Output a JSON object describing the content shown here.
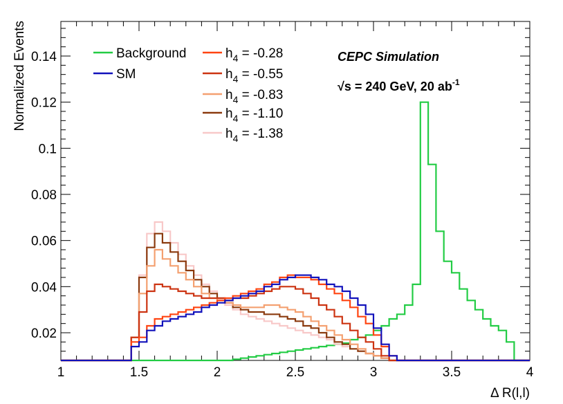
{
  "chart_data": {
    "type": "histogram",
    "title": "",
    "xlabel": "Δ R(l,l)",
    "ylabel": "Normalized Events",
    "xlim": [
      1.0,
      4.0
    ],
    "ylim": [
      0.008,
      0.155
    ],
    "bin_width": 0.05,
    "x_start": 1.0,
    "x_ticks": [
      "1",
      "1.5",
      "2",
      "2.5",
      "3",
      "3.5",
      "4"
    ],
    "y_ticks": [
      "0.02",
      "0.04",
      "0.06",
      "0.08",
      "0.1",
      "0.12",
      "0.14"
    ],
    "annotations": {
      "line1": "CEPC Simulation",
      "line2": "√s = 240 GeV, 20 ab",
      "line2_sup": "-1"
    },
    "series": [
      {
        "name": "Background",
        "legend_label": "Background",
        "color": "#22cc44",
        "values": [
          0.008,
          0.008,
          0.008,
          0.008,
          0.008,
          0.008,
          0.008,
          0.008,
          0.008,
          0.008,
          0.008,
          0.008,
          0.008,
          0.008,
          0.008,
          0.008,
          0.008,
          0.008,
          0.008,
          0.008,
          0.008,
          0.008,
          0.0085,
          0.009,
          0.0095,
          0.01,
          0.0105,
          0.011,
          0.0115,
          0.012,
          0.0125,
          0.013,
          0.0135,
          0.014,
          0.0145,
          0.015,
          0.0155,
          0.017,
          0.018,
          0.019,
          0.021,
          0.023,
          0.026,
          0.028,
          0.032,
          0.041,
          0.12,
          0.093,
          0.064,
          0.051,
          0.046,
          0.039,
          0.034,
          0.03,
          0.026,
          0.023,
          0.021,
          0.016,
          0.008,
          0.008
        ]
      },
      {
        "name": "SM",
        "legend_label": "SM",
        "color": "#1111bb",
        "values": [
          0.008,
          0.008,
          0.008,
          0.008,
          0.008,
          0.008,
          0.008,
          0.008,
          0.008,
          0.014,
          0.016,
          0.021,
          0.023,
          0.025,
          0.026,
          0.027,
          0.028,
          0.029,
          0.031,
          0.032,
          0.033,
          0.034,
          0.035,
          0.036,
          0.037,
          0.038,
          0.04,
          0.041,
          0.043,
          0.044,
          0.045,
          0.045,
          0.044,
          0.043,
          0.041,
          0.04,
          0.038,
          0.035,
          0.032,
          0.028,
          0.022,
          0.015,
          0.01,
          0.008,
          0.008,
          0.008,
          0.008,
          0.008,
          0.008,
          0.008,
          0.008,
          0.008,
          0.008,
          0.008,
          0.008,
          0.008,
          0.008,
          0.008,
          0.008,
          0.008
        ]
      },
      {
        "name": "h4 = -0.28",
        "legend_base": "h",
        "legend_sub": "4",
        "legend_value": " = -0.28",
        "color": "#ff4411",
        "values": [
          0.008,
          0.008,
          0.008,
          0.008,
          0.008,
          0.008,
          0.008,
          0.008,
          0.008,
          0.016,
          0.018,
          0.023,
          0.026,
          0.027,
          0.028,
          0.029,
          0.03,
          0.031,
          0.032,
          0.033,
          0.034,
          0.035,
          0.036,
          0.037,
          0.038,
          0.039,
          0.041,
          0.042,
          0.044,
          0.045,
          0.044,
          0.044,
          0.043,
          0.041,
          0.039,
          0.037,
          0.034,
          0.031,
          0.027,
          0.024,
          0.019,
          0.014,
          0.01,
          0.008,
          0.008,
          0.008,
          0.008,
          0.008,
          0.008,
          0.008,
          0.008,
          0.008,
          0.008,
          0.008,
          0.008,
          0.008,
          0.008,
          0.008,
          0.008,
          0.008
        ]
      },
      {
        "name": "h4 = -0.55",
        "legend_base": "h",
        "legend_sub": "4",
        "legend_value": " = -0.55",
        "color": "#cc3311",
        "values": [
          0.008,
          0.008,
          0.008,
          0.008,
          0.008,
          0.008,
          0.008,
          0.008,
          0.008,
          0.018,
          0.029,
          0.038,
          0.041,
          0.04,
          0.039,
          0.038,
          0.037,
          0.036,
          0.035,
          0.035,
          0.035,
          0.034,
          0.035,
          0.035,
          0.036,
          0.037,
          0.038,
          0.039,
          0.04,
          0.04,
          0.039,
          0.037,
          0.035,
          0.032,
          0.03,
          0.027,
          0.024,
          0.021,
          0.018,
          0.016,
          0.013,
          0.01,
          0.008,
          0.008,
          0.008,
          0.008,
          0.008,
          0.008,
          0.008,
          0.008,
          0.008,
          0.008,
          0.008,
          0.008,
          0.008,
          0.008,
          0.008,
          0.008,
          0.008,
          0.008
        ]
      },
      {
        "name": "h4 = -0.83",
        "legend_base": "h",
        "legend_sub": "4",
        "legend_value": " = -0.83",
        "color": "#f4a070",
        "values": [
          0.008,
          0.008,
          0.008,
          0.008,
          0.008,
          0.008,
          0.008,
          0.008,
          0.008,
          0.018,
          0.037,
          0.049,
          0.056,
          0.052,
          0.049,
          0.046,
          0.043,
          0.04,
          0.037,
          0.035,
          0.034,
          0.033,
          0.032,
          0.031,
          0.031,
          0.031,
          0.032,
          0.032,
          0.031,
          0.03,
          0.029,
          0.027,
          0.025,
          0.023,
          0.021,
          0.019,
          0.017,
          0.015,
          0.013,
          0.011,
          0.01,
          0.009,
          0.008,
          0.008,
          0.008,
          0.008,
          0.008,
          0.008,
          0.008,
          0.008,
          0.008,
          0.008,
          0.008,
          0.008,
          0.008,
          0.008,
          0.008,
          0.008,
          0.008,
          0.008
        ]
      },
      {
        "name": "h4 = -1.10",
        "legend_base": "h",
        "legend_sub": "4",
        "legend_value": " = -1.10",
        "color": "#8b3a0e",
        "values": [
          0.008,
          0.008,
          0.008,
          0.008,
          0.008,
          0.008,
          0.008,
          0.008,
          0.008,
          0.018,
          0.044,
          0.057,
          0.063,
          0.059,
          0.055,
          0.051,
          0.047,
          0.043,
          0.04,
          0.037,
          0.035,
          0.033,
          0.031,
          0.03,
          0.029,
          0.029,
          0.028,
          0.028,
          0.027,
          0.026,
          0.025,
          0.023,
          0.022,
          0.02,
          0.018,
          0.016,
          0.015,
          0.013,
          0.012,
          0.011,
          0.01,
          0.009,
          0.008,
          0.008,
          0.008,
          0.008,
          0.008,
          0.008,
          0.008,
          0.008,
          0.008,
          0.008,
          0.008,
          0.008,
          0.008,
          0.008,
          0.008,
          0.008,
          0.008,
          0.008
        ]
      },
      {
        "name": "h4 = -1.38",
        "legend_base": "h",
        "legend_sub": "4",
        "legend_value": " = -1.38",
        "color": "#f8c8c8",
        "values": [
          0.008,
          0.008,
          0.008,
          0.008,
          0.008,
          0.008,
          0.008,
          0.008,
          0.008,
          0.018,
          0.045,
          0.063,
          0.068,
          0.064,
          0.059,
          0.054,
          0.049,
          0.045,
          0.041,
          0.038,
          0.035,
          0.032,
          0.03,
          0.028,
          0.027,
          0.026,
          0.025,
          0.024,
          0.023,
          0.022,
          0.021,
          0.02,
          0.019,
          0.018,
          0.017,
          0.015,
          0.014,
          0.013,
          0.012,
          0.011,
          0.01,
          0.009,
          0.008,
          0.008,
          0.008,
          0.008,
          0.008,
          0.008,
          0.008,
          0.008,
          0.008,
          0.008,
          0.008,
          0.008,
          0.008,
          0.008,
          0.008,
          0.008,
          0.008,
          0.008
        ]
      }
    ]
  }
}
